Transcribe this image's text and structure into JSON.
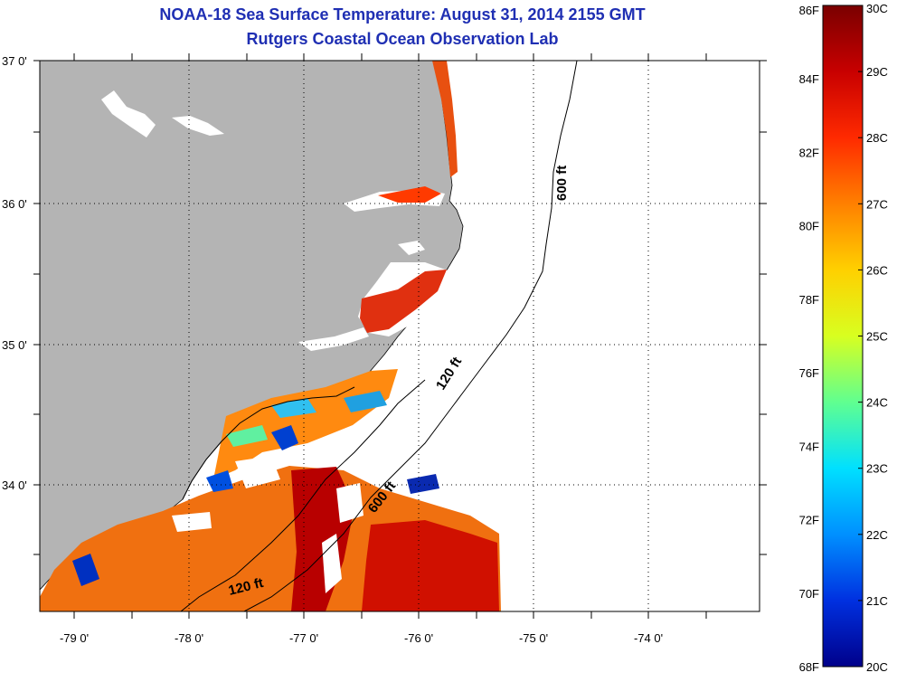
{
  "title": {
    "line1": "NOAA-18 Sea Surface Temperature:  August 31, 2014 2155 GMT",
    "line2": "Rutgers Coastal Ocean Observation Lab"
  },
  "colors": {
    "title": "#1f2fb3",
    "land": "#b4b4b4",
    "ocean": "#ffffff",
    "gridline": "#000000"
  },
  "axes": {
    "lat_labels": [
      "37 0'",
      "36 0'",
      "35 0'",
      "34 0'"
    ],
    "lon_labels": [
      "-79 0'",
      "-78 0'",
      "-77 0'",
      "-76 0'",
      "-75 0'",
      "-74 0'"
    ]
  },
  "isobaths": {
    "label_600_north": "600 ft",
    "label_120_mid": "120 ft",
    "label_600_south": "600 ft",
    "label_120_south": "120 ft"
  },
  "colorbar": {
    "fahrenheit_labels": [
      "86F",
      "84F",
      "82F",
      "80F",
      "78F",
      "76F",
      "74F",
      "72F",
      "70F",
      "68F"
    ],
    "celsius_labels": [
      "30C",
      "29C",
      "28C",
      "27C",
      "26C",
      "25C",
      "24C",
      "23C",
      "22C",
      "21C",
      "20C"
    ],
    "gradient_stops": [
      "#7a0000",
      "#c80000",
      "#ff2a00",
      "#ff8000",
      "#ffd000",
      "#d8ff20",
      "#60ff90",
      "#00e0ff",
      "#0090ff",
      "#0030e0",
      "#00008a"
    ]
  }
}
